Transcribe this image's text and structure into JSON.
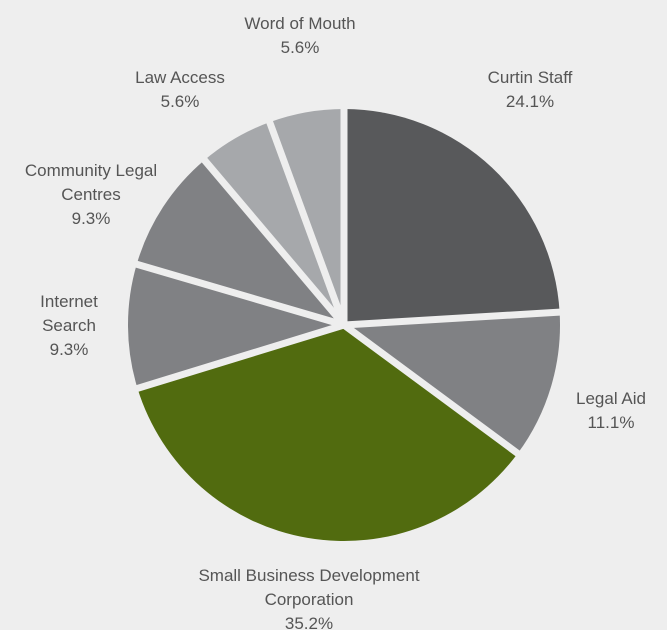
{
  "chart_data": {
    "type": "pie",
    "title": "",
    "slices": [
      {
        "label": [
          "Curtin Staff"
        ],
        "value": 24.1,
        "display": "24.1%",
        "color": "#58595b"
      },
      {
        "label": [
          "Legal Aid"
        ],
        "value": 11.1,
        "display": "11.1%",
        "color": "#808184"
      },
      {
        "label": [
          "Small Business Development",
          "Corporation"
        ],
        "value": 35.2,
        "display": "35.2%",
        "color": "#516b0f"
      },
      {
        "label": [
          "Internet",
          "Search"
        ],
        "value": 9.3,
        "display": "9.3%",
        "color": "#808184"
      },
      {
        "label": [
          "Community Legal",
          "Centres"
        ],
        "value": 9.3,
        "display": "9.3%",
        "color": "#808184"
      },
      {
        "label": [
          "Law Access"
        ],
        "value": 5.6,
        "display": "5.6%",
        "color": "#a6a8ab"
      },
      {
        "label": [
          "Word of Mouth"
        ],
        "value": 5.6,
        "display": "5.6%",
        "color": "#a6a8ab"
      }
    ],
    "start_angle_deg": 0,
    "direction": "clockwise",
    "legend": "none",
    "separator_color": "#eeeeee"
  }
}
